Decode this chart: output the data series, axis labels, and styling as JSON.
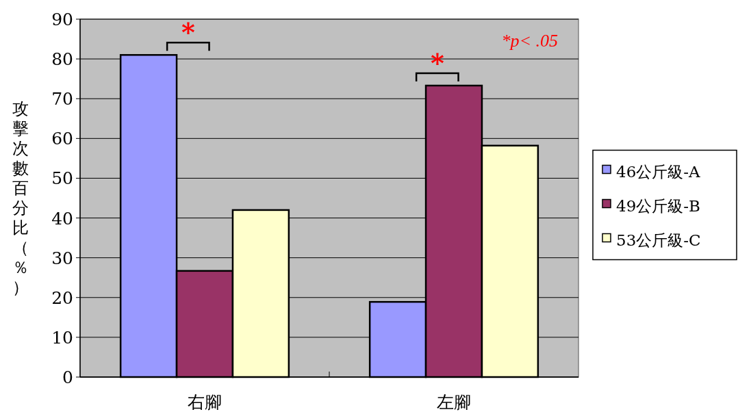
{
  "chart_data": {
    "type": "bar",
    "ylabel": "攻擊次數百分比（％）",
    "categories": [
      "右腳",
      "左腳"
    ],
    "series": [
      {
        "name": "46公斤級-A",
        "color": "#9999ff",
        "values": [
          81,
          18.9
        ]
      },
      {
        "name": "49公斤級-B",
        "color": "#993366",
        "values": [
          26.7,
          73.3
        ]
      },
      {
        "name": "53公斤級-C",
        "color": "#ffffcc",
        "values": [
          42,
          58.2
        ]
      }
    ],
    "ylim": [
      0,
      90
    ],
    "yticks": [
      0,
      10,
      20,
      30,
      40,
      50,
      60,
      70,
      80,
      90
    ],
    "grid": "y",
    "legend": "right",
    "annotations": [
      "*",
      "*",
      "*p< .05"
    ]
  }
}
